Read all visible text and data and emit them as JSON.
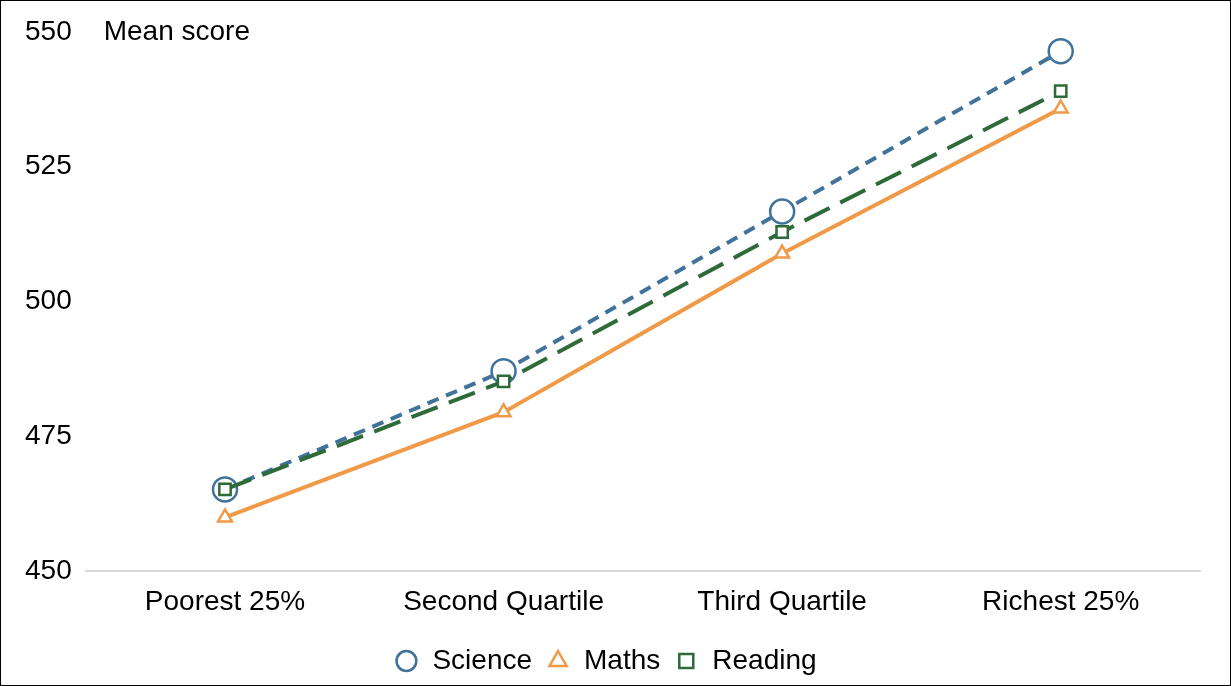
{
  "chart_data": {
    "type": "line",
    "ylabel": "Mean score",
    "categories": [
      "Poorest 25%",
      "Second Quartile",
      "Third Quartile",
      "Richest 25%"
    ],
    "series": [
      {
        "name": "Science",
        "color": "#41729a",
        "values": [
          465.2,
          487.1,
          516.7,
          546.4
        ],
        "marker": "circle",
        "line_style": "dashed"
      },
      {
        "name": "Maths",
        "color": "#f09a48",
        "values": [
          460,
          479.5,
          508.9,
          535.8
        ],
        "marker": "triangle",
        "line_style": "solid"
      },
      {
        "name": "Reading",
        "color": "#2f6b3a",
        "values": [
          465.2,
          485.2,
          512.9,
          539
        ],
        "marker": "square",
        "line_style": "longdash"
      }
    ],
    "ylim": [
      450,
      550
    ],
    "yticks": [
      450,
      475,
      500,
      525,
      550
    ],
    "grid": false,
    "legend": "bottom"
  }
}
